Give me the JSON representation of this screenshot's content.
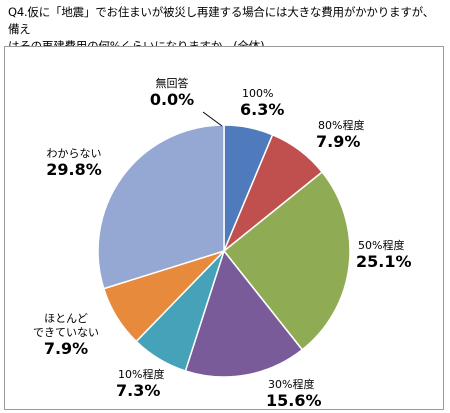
{
  "question": {
    "line1": "Q4.仮に「地震」でお住まいが被災し再建する場合には大きな費用がかかりますが、備え",
    "line2": "はその再建費用の何%くらいになりますか。(全体)"
  },
  "chart_data": {
    "type": "pie",
    "start_angle_deg": 0,
    "direction": "clockwise",
    "slices": [
      {
        "label": "100%",
        "label_lines": [
          "100%"
        ],
        "value": 6.3,
        "value_text": "6.3%",
        "color": "#4f7bbd"
      },
      {
        "label": "80%程度",
        "label_lines": [
          "80%程度"
        ],
        "value": 7.9,
        "value_text": "7.9%",
        "color": "#c0504d"
      },
      {
        "label": "50%程度",
        "label_lines": [
          "50%程度"
        ],
        "value": 25.1,
        "value_text": "25.1%",
        "color": "#8fac55"
      },
      {
        "label": "30%程度",
        "label_lines": [
          "30%程度"
        ],
        "value": 15.6,
        "value_text": "15.6%",
        "color": "#7a5b9a"
      },
      {
        "label": "10%程度",
        "label_lines": [
          "10%程度"
        ],
        "value": 7.3,
        "value_text": "7.3%",
        "color": "#45a2b8"
      },
      {
        "label": "ほとんどできていない",
        "label_lines": [
          "ほとんど",
          "できていない"
        ],
        "value": 7.9,
        "value_text": "7.9%",
        "color": "#e88a3c"
      },
      {
        "label": "わからない",
        "label_lines": [
          "わからない"
        ],
        "value": 29.8,
        "value_text": "29.8%",
        "color": "#95a8d4"
      },
      {
        "label": "無回答",
        "label_lines": [
          "無回答"
        ],
        "value": 0.0,
        "value_text": "0.0%",
        "color": "#7f7f7f"
      }
    ]
  }
}
